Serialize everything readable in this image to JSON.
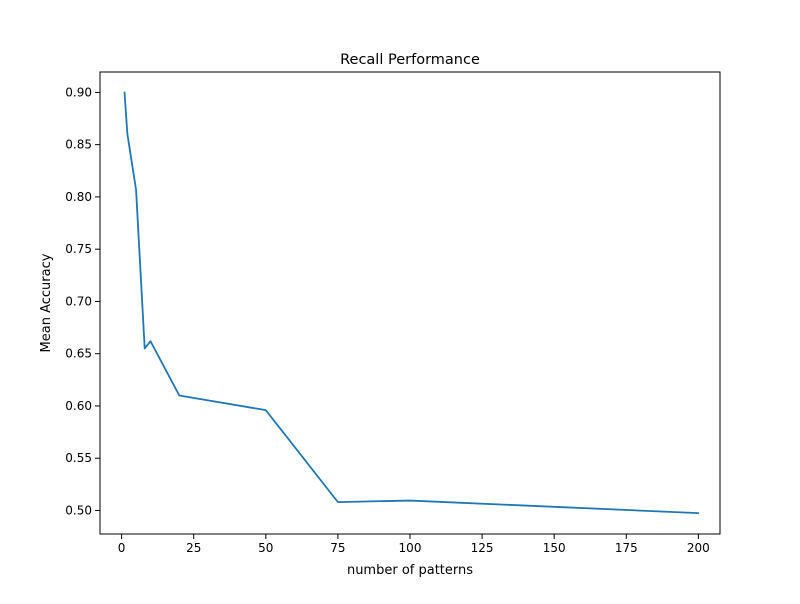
{
  "chart_data": {
    "type": "line",
    "title": "Recall Performance",
    "xlabel": "number of patterns",
    "ylabel": "Mean Accuracy",
    "xlim": [
      -7.5,
      207.5
    ],
    "ylim": [
      0.4775,
      0.9195
    ],
    "xticks": [
      0,
      25,
      50,
      75,
      100,
      125,
      150,
      175,
      200
    ],
    "xtick_labels": [
      "0",
      "25",
      "50",
      "75",
      "100",
      "125",
      "150",
      "175",
      "200"
    ],
    "yticks": [
      0.5,
      0.55,
      0.6,
      0.65,
      0.7,
      0.75,
      0.8,
      0.85,
      0.9
    ],
    "ytick_labels": [
      "0.50",
      "0.55",
      "0.60",
      "0.65",
      "0.70",
      "0.75",
      "0.80",
      "0.85",
      "0.90"
    ],
    "grid": false,
    "series": [
      {
        "name": "Mean Accuracy",
        "color": "#1f77b4",
        "x": [
          1,
          2,
          5,
          8,
          10,
          20,
          50,
          75,
          100,
          200
        ],
        "y": [
          0.9,
          0.86,
          0.807,
          0.655,
          0.662,
          0.61,
          0.596,
          0.508,
          0.5095,
          0.4975
        ]
      }
    ]
  }
}
